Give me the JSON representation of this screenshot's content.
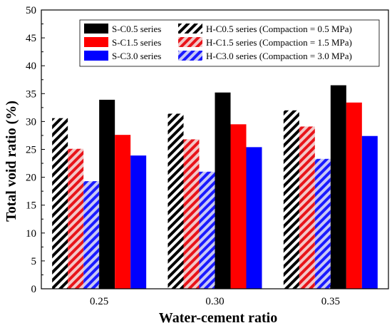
{
  "chart_data": {
    "type": "bar",
    "xlabel": "Water-cement ratio",
    "ylabel": "Total void ratio (%)",
    "ylim": [
      0,
      50
    ],
    "yticks": [
      0,
      5,
      10,
      15,
      20,
      25,
      30,
      35,
      40,
      45,
      50
    ],
    "categories": [
      "0.25",
      "0.30",
      "0.35"
    ],
    "legend_position": "top-right",
    "grid": false,
    "series": [
      {
        "name": "H-C0.5 series (Compaction = 0.5 MPa)",
        "values": [
          30.6,
          31.4,
          32.0
        ],
        "color": "#000000",
        "pattern": "hatch"
      },
      {
        "name": "H-C1.5 series (Compaction = 1.5 MPa)",
        "values": [
          25.1,
          26.8,
          29.1
        ],
        "color": "#e8141a",
        "pattern": "hatch"
      },
      {
        "name": "H-C3.0 series (Compaction = 3.0 MPa)",
        "values": [
          19.3,
          21.0,
          23.3
        ],
        "color": "#1a1aff",
        "pattern": "hatch"
      },
      {
        "name": "S-C0.5 series",
        "values": [
          33.9,
          35.2,
          36.5
        ],
        "color": "#000000",
        "pattern": "solid"
      },
      {
        "name": "S-C1.5 series",
        "values": [
          27.6,
          29.5,
          33.4
        ],
        "color": "#ff0000",
        "pattern": "solid"
      },
      {
        "name": "S-C3.0 series",
        "values": [
          23.9,
          25.4,
          27.4
        ],
        "color": "#0000ff",
        "pattern": "solid"
      }
    ],
    "legend_order": [
      3,
      0,
      4,
      1,
      5,
      2
    ]
  }
}
